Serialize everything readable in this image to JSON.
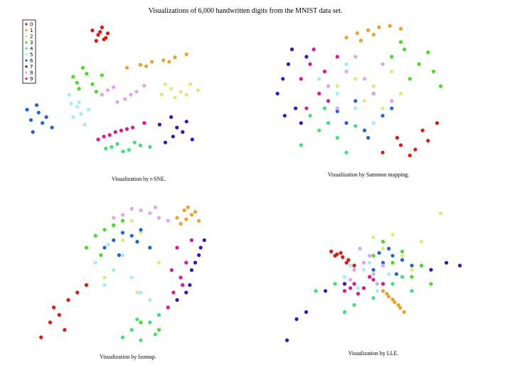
{
  "title": "Visualizations of 6,000 handwritten digits from the MNIST data set.",
  "chart_data": [
    {
      "type": "scatter",
      "caption": "Visualization by t-SNE.",
      "legend": "upper left",
      "xlim": [
        0,
        100
      ],
      "ylim": [
        0,
        100
      ],
      "series": [
        {
          "name": "0",
          "color": "#e8140c",
          "x": [
            37,
            40,
            43,
            45,
            39,
            42,
            41,
            44
          ],
          "values": [
            93,
            90,
            87,
            91,
            86,
            95,
            92,
            88
          ]
        },
        {
          "name": "1",
          "color": "#f0a024",
          "x": [
            55,
            62,
            68,
            74,
            80,
            86,
            65,
            77
          ],
          "values": [
            68,
            70,
            72,
            73,
            75,
            77,
            69,
            72
          ]
        },
        {
          "name": "2",
          "color": "#d2f07a",
          "x": [
            73,
            78,
            83,
            88,
            92,
            80,
            86,
            75
          ],
          "values": [
            50,
            54,
            52,
            57,
            53,
            48,
            50,
            57
          ]
        },
        {
          "name": "3",
          "color": "#44e01c",
          "x": [
            27,
            32,
            37,
            42,
            30,
            39,
            34,
            29
          ],
          "values": [
            62,
            68,
            57,
            63,
            54,
            52,
            64,
            58
          ]
        },
        {
          "name": "4",
          "color": "#3ee078",
          "x": [
            44,
            50,
            56,
            62,
            67,
            53,
            59,
            47
          ],
          "values": [
            14,
            17,
            13,
            16,
            15,
            12,
            18,
            15
          ]
        },
        {
          "name": "5",
          "color": "#9ef0f4",
          "x": [
            25,
            30,
            35,
            27,
            33,
            29,
            31,
            26
          ],
          "values": [
            50,
            45,
            40,
            35,
            30,
            42,
            37,
            44
          ]
        },
        {
          "name": "6",
          "color": "#1c64e0",
          "x": [
            3,
            8,
            13,
            16,
            6,
            11,
            9,
            5
          ],
          "values": [
            40,
            43,
            35,
            28,
            25,
            31,
            38,
            33
          ]
        },
        {
          "name": "7",
          "color": "#3414c8",
          "x": [
            72,
            78,
            84,
            89,
            75,
            86,
            81,
            79
          ],
          "values": [
            30,
            35,
            25,
            20,
            18,
            32,
            28,
            22
          ]
        },
        {
          "name": "8",
          "color": "#e0a4f0",
          "x": [
            42,
            48,
            54,
            60,
            64,
            50,
            57,
            45
          ],
          "values": [
            50,
            55,
            47,
            52,
            56,
            45,
            50,
            53
          ]
        },
        {
          "name": "9",
          "color": "#e41490",
          "x": [
            40,
            46,
            52,
            58,
            64,
            49,
            55,
            43
          ],
          "values": [
            20,
            23,
            26,
            28,
            31,
            25,
            27,
            22
          ]
        }
      ]
    },
    {
      "type": "scatter",
      "caption": "Visualization by Sammon mapping.",
      "xlim": [
        0,
        100
      ],
      "ylim": [
        0,
        100
      ],
      "series": [
        {
          "color": "#e8140c",
          "x": [
            60,
            68,
            75,
            82,
            90,
            70,
            85,
            78
          ],
          "values": [
            10,
            20,
            8,
            25,
            30,
            15,
            18,
            12
          ]
        },
        {
          "color": "#f0a024",
          "x": [
            40,
            46,
            52,
            58,
            64,
            70,
            55,
            48
          ],
          "values": [
            88,
            91,
            93,
            95,
            96,
            94,
            90,
            86
          ]
        },
        {
          "color": "#d2f07a",
          "x": [
            45,
            55,
            65,
            50,
            60,
            40,
            70,
            35
          ],
          "values": [
            60,
            55,
            65,
            45,
            40,
            70,
            50,
            55
          ]
        },
        {
          "color": "#44e01c",
          "x": [
            65,
            72,
            80,
            88,
            92,
            75,
            85,
            70
          ],
          "values": [
            75,
            80,
            70,
            65,
            55,
            60,
            78,
            85
          ]
        },
        {
          "color": "#3ee078",
          "x": [
            15,
            25,
            35,
            20,
            30,
            40,
            45,
            28
          ],
          "values": [
            15,
            25,
            20,
            35,
            30,
            10,
            28,
            40
          ]
        },
        {
          "color": "#9ef0f4",
          "x": [
            35,
            45,
            55,
            30,
            50,
            60,
            40,
            25
          ],
          "values": [
            50,
            40,
            30,
            45,
            60,
            35,
            70,
            60
          ]
        },
        {
          "color": "#1c64e0",
          "x": [
            40,
            50,
            60,
            45,
            55,
            65,
            35,
            52
          ],
          "values": [
            30,
            25,
            35,
            45,
            50,
            40,
            38,
            20
          ]
        },
        {
          "color": "#3414c8",
          "x": [
            2,
            5,
            8,
            12,
            15,
            6,
            18,
            10
          ],
          "values": [
            50,
            60,
            70,
            40,
            30,
            35,
            75,
            80
          ]
        },
        {
          "color": "#e0a4f0",
          "x": [
            30,
            40,
            50,
            60,
            45,
            55,
            35,
            65
          ],
          "values": [
            55,
            65,
            60,
            70,
            75,
            50,
            40,
            45
          ]
        },
        {
          "color": "#e41490",
          "x": [
            15,
            20,
            25,
            30,
            22,
            28,
            18,
            35
          ],
          "values": [
            60,
            70,
            50,
            45,
            80,
            65,
            40,
            75
          ]
        }
      ]
    },
    {
      "type": "scatter",
      "caption": "Visualization by Isomap.",
      "xlim": [
        0,
        100
      ],
      "ylim": [
        0,
        100
      ],
      "series": [
        {
          "color": "#e8140c",
          "x": [
            5,
            10,
            15,
            20,
            25,
            30,
            18,
            12
          ],
          "values": [
            10,
            20,
            25,
            35,
            40,
            45,
            15,
            30
          ]
        },
        {
          "color": "#f0a024",
          "x": [
            80,
            84,
            88,
            92,
            86,
            82,
            90,
            85
          ],
          "values": [
            90,
            95,
            92,
            88,
            97,
            86,
            94,
            89
          ]
        },
        {
          "color": "#d2f07a",
          "x": [
            45,
            55,
            60,
            50,
            65,
            70,
            40,
            58
          ],
          "values": [
            85,
            88,
            80,
            75,
            70,
            60,
            50,
            40
          ]
        },
        {
          "color": "#44e01c",
          "x": [
            30,
            35,
            40,
            45,
            50,
            38,
            60,
            70
          ],
          "values": [
            70,
            78,
            82,
            85,
            88,
            65,
            20,
            15
          ]
        },
        {
          "color": "#3ee078",
          "x": [
            50,
            55,
            60,
            65,
            70,
            75,
            58,
            68
          ],
          "values": [
            10,
            15,
            8,
            20,
            25,
            30,
            22,
            12
          ]
        },
        {
          "color": "#9ef0f4",
          "x": [
            35,
            45,
            55,
            40,
            50,
            60,
            65,
            42
          ],
          "values": [
            60,
            55,
            50,
            45,
            65,
            40,
            35,
            72
          ]
        },
        {
          "color": "#1c64e0",
          "x": [
            40,
            45,
            50,
            55,
            60,
            65,
            48,
            58
          ],
          "values": [
            70,
            75,
            80,
            78,
            82,
            70,
            65,
            74
          ]
        },
        {
          "color": "#3414c8",
          "x": [
            85,
            88,
            92,
            95,
            90,
            87,
            93,
            80
          ],
          "values": [
            40,
            55,
            65,
            75,
            60,
            45,
            70,
            35
          ]
        },
        {
          "color": "#e0a4f0",
          "x": [
            50,
            60,
            70,
            55,
            65,
            75,
            45,
            68
          ],
          "values": [
            92,
            95,
            90,
            96,
            93,
            88,
            90,
            97
          ]
        },
        {
          "color": "#e41490",
          "x": [
            75,
            78,
            82,
            85,
            80,
            88,
            77,
            83
          ],
          "values": [
            30,
            40,
            50,
            60,
            70,
            75,
            55,
            45
          ]
        }
      ]
    },
    {
      "type": "scatter",
      "caption": "Visualization by LLE.",
      "xlim": [
        0,
        100
      ],
      "ylim": [
        0,
        100
      ],
      "series": [
        {
          "color": "#e8140c",
          "x": [
            28,
            31,
            34,
            37,
            40,
            30,
            36,
            33
          ],
          "values": [
            68,
            66,
            64,
            62,
            58,
            65,
            60,
            67
          ]
        },
        {
          "color": "#f0a024",
          "x": [
            55,
            58,
            61,
            64,
            66,
            60,
            57,
            63
          ],
          "values": [
            40,
            36,
            32,
            28,
            25,
            34,
            38,
            30
          ]
        },
        {
          "color": "#d2f07a",
          "x": [
            45,
            55,
            65,
            75,
            85,
            60,
            70,
            50
          ],
          "values": [
            60,
            70,
            65,
            75,
            95,
            80,
            55,
            78
          ]
        },
        {
          "color": "#44e01c",
          "x": [
            40,
            50,
            60,
            70,
            80,
            55,
            65,
            75
          ],
          "values": [
            55,
            65,
            60,
            50,
            45,
            75,
            68,
            58
          ]
        },
        {
          "color": "#3ee078",
          "x": [
            20,
            30,
            40,
            50,
            60,
            70,
            35,
            65
          ],
          "values": [
            40,
            45,
            30,
            35,
            45,
            40,
            25,
            50
          ]
        },
        {
          "color": "#9ef0f4",
          "x": [
            35,
            45,
            55,
            48,
            52,
            42,
            58,
            38
          ],
          "values": [
            50,
            55,
            45,
            60,
            40,
            42,
            52,
            58
          ]
        },
        {
          "color": "#1c64e0",
          "x": [
            50,
            55,
            60,
            65,
            70,
            58,
            62,
            53
          ],
          "values": [
            55,
            60,
            65,
            62,
            58,
            70,
            52,
            67
          ]
        },
        {
          "color": "#3414c8",
          "x": [
            5,
            15,
            25,
            35,
            80,
            88,
            95,
            10
          ],
          "values": [
            5,
            25,
            40,
            45,
            55,
            60,
            58,
            20
          ]
        },
        {
          "color": "#e0a4f0",
          "x": [
            40,
            45,
            50,
            38,
            55,
            48,
            43,
            52
          ],
          "values": [
            55,
            60,
            52,
            48,
            58,
            65,
            70,
            45
          ]
        },
        {
          "color": "#e41490",
          "x": [
            35,
            40,
            45,
            50,
            55,
            42,
            48,
            38
          ],
          "values": [
            40,
            45,
            42,
            48,
            45,
            38,
            50,
            42
          ]
        }
      ]
    }
  ]
}
